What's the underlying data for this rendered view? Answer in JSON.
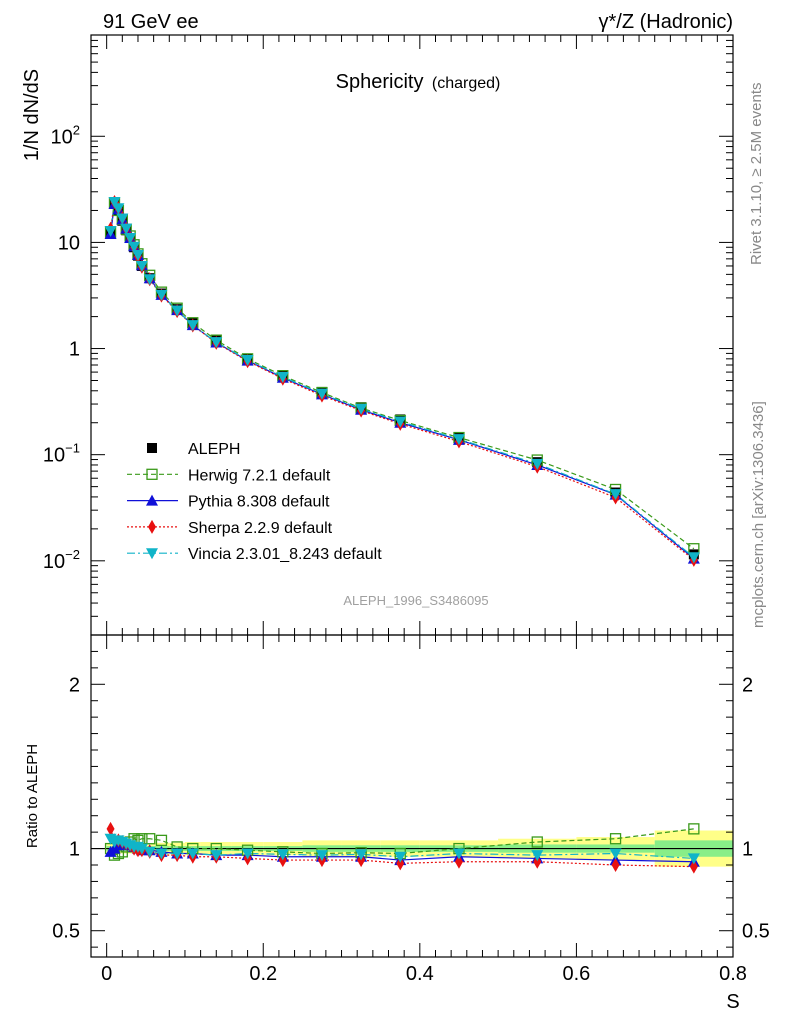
{
  "header": {
    "left": "91 GeV ee",
    "right": "γ*/Z (Hadronic)"
  },
  "side_labels": {
    "rivet": "Rivet 3.1.10, ≥ 2.5M events",
    "mcplots": "mcplots.cern.ch [arXiv:1306.3436]"
  },
  "analysis_id": "ALEPH_1996_S3486095",
  "colors": {
    "herwig": "#3a9a1a",
    "pythia": "#1010d8",
    "sherpa": "#e81010",
    "vincia": "#10b4c8",
    "data": "#000000",
    "band_outer": "#ffff88",
    "band_inner": "#88ee88"
  },
  "chart_data": [
    {
      "type": "line",
      "panel": "main",
      "title": "Sphericity",
      "title_suffix": "(charged)",
      "ylabel": "1/N dN/dS",
      "yscale": "log",
      "ylim": [
        0.002,
        900
      ],
      "xlim": [
        -0.02,
        0.8
      ],
      "yticks": [
        {
          "v": 0.01,
          "base": "10",
          "exp": "−2"
        },
        {
          "v": 0.1,
          "base": "10",
          "exp": "−1"
        },
        {
          "v": 1,
          "base": "1",
          "exp": ""
        },
        {
          "v": 10,
          "base": "10",
          "exp": ""
        },
        {
          "v": 100,
          "base": "10",
          "exp": "2"
        }
      ],
      "x": [
        0.005,
        0.01,
        0.015,
        0.02,
        0.025,
        0.03,
        0.035,
        0.04,
        0.045,
        0.055,
        0.07,
        0.09,
        0.11,
        0.14,
        0.18,
        0.225,
        0.275,
        0.325,
        0.375,
        0.45,
        0.55,
        0.65,
        0.75
      ],
      "series": [
        {
          "name": "ALEPH",
          "key": "data",
          "values": [
            12,
            23,
            20,
            16,
            13,
            11,
            9,
            7.5,
            6,
            4.6,
            3.3,
            2.35,
            1.75,
            1.2,
            0.8,
            0.56,
            0.39,
            0.28,
            0.215,
            0.145,
            0.085,
            0.044,
            0.0115
          ]
        },
        {
          "name": "Herwig 7.2.1 default",
          "key": "herwig",
          "values": [
            12.5,
            23.5,
            20,
            16.5,
            13.3,
            11.5,
            9.5,
            7.8,
            6.3,
            4.9,
            3.4,
            2.4,
            1.75,
            1.2,
            0.8,
            0.555,
            0.385,
            0.275,
            0.21,
            0.145,
            0.089,
            0.047,
            0.013
          ]
        },
        {
          "name": "Pythia 8.308 default",
          "key": "pythia",
          "values": [
            12,
            23,
            20.5,
            16.5,
            13.5,
            11,
            9.2,
            7.6,
            6.1,
            4.6,
            3.2,
            2.3,
            1.66,
            1.14,
            0.77,
            0.53,
            0.37,
            0.265,
            0.2,
            0.138,
            0.08,
            0.042,
            0.0105
          ]
        },
        {
          "name": "Sherpa 2.2.9 default",
          "key": "sherpa",
          "values": [
            13.5,
            24,
            21,
            17,
            13.5,
            11,
            9,
            7.4,
            5.9,
            4.5,
            3.15,
            2.25,
            1.65,
            1.13,
            0.76,
            0.52,
            0.36,
            0.26,
            0.195,
            0.133,
            0.077,
            0.0395,
            0.0102
          ]
        },
        {
          "name": "Vincia 2.3.01_8.243 default",
          "key": "vincia",
          "values": [
            12.8,
            24,
            21,
            16.8,
            13.5,
            11,
            9.1,
            7.6,
            6,
            4.5,
            3.2,
            2.28,
            1.66,
            1.15,
            0.78,
            0.54,
            0.375,
            0.27,
            0.205,
            0.14,
            0.082,
            0.0425,
            0.0108
          ]
        }
      ]
    },
    {
      "type": "line",
      "panel": "ratio",
      "ylabel": "Ratio to ALEPH",
      "xlabel": "S",
      "ylim": [
        0.34,
        2.3
      ],
      "xlim": [
        -0.02,
        0.8
      ],
      "yticks": [
        0.5,
        1,
        2
      ],
      "xticks": [
        0,
        0.2,
        0.4,
        0.6,
        0.8
      ],
      "xtick_labels": [
        "0",
        "0.2",
        "0.4",
        "0.6",
        "0.8"
      ],
      "ytick_labels": [
        "0.5",
        "1",
        "2"
      ],
      "x": [
        0.005,
        0.01,
        0.015,
        0.02,
        0.025,
        0.03,
        0.035,
        0.04,
        0.045,
        0.055,
        0.07,
        0.09,
        0.11,
        0.14,
        0.18,
        0.225,
        0.275,
        0.325,
        0.375,
        0.45,
        0.55,
        0.65,
        0.75
      ],
      "band_edges": [
        0,
        0.01,
        0.02,
        0.03,
        0.04,
        0.05,
        0.06,
        0.08,
        0.1,
        0.12,
        0.16,
        0.2,
        0.25,
        0.3,
        0.35,
        0.4,
        0.5,
        0.6,
        0.7,
        0.8
      ],
      "band_inner": [
        0.015,
        0.015,
        0.015,
        0.015,
        0.015,
        0.015,
        0.015,
        0.015,
        0.015,
        0.015,
        0.015,
        0.015,
        0.02,
        0.02,
        0.02,
        0.02,
        0.025,
        0.025,
        0.05
      ],
      "band_outer": [
        0.03,
        0.03,
        0.03,
        0.03,
        0.03,
        0.03,
        0.035,
        0.035,
        0.04,
        0.04,
        0.04,
        0.04,
        0.05,
        0.05,
        0.05,
        0.05,
        0.06,
        0.07,
        0.11
      ],
      "series": [
        {
          "name": "Herwig 7.2.1 default",
          "key": "herwig",
          "values": [
            1.0,
            0.96,
            0.97,
            0.98,
            1.01,
            1.04,
            1.06,
            1.05,
            1.06,
            1.06,
            1.05,
            1.01,
            1.0,
            1.0,
            0.99,
            0.98,
            0.97,
            0.975,
            0.97,
            1.0,
            1.04,
            1.06,
            1.12
          ]
        },
        {
          "name": "Pythia 8.308 default",
          "key": "pythia",
          "values": [
            0.98,
            1.0,
            1.02,
            1.03,
            1.03,
            1.02,
            1.01,
            1.0,
            0.99,
            0.99,
            0.98,
            0.97,
            0.97,
            0.96,
            0.96,
            0.95,
            0.95,
            0.95,
            0.93,
            0.95,
            0.94,
            0.93,
            0.92
          ]
        },
        {
          "name": "Sherpa 2.2.9 default",
          "key": "sherpa",
          "values": [
            1.12,
            1.05,
            1.05,
            1.04,
            1.03,
            1.02,
            1.0,
            0.99,
            0.99,
            0.98,
            0.96,
            0.96,
            0.95,
            0.95,
            0.94,
            0.93,
            0.93,
            0.93,
            0.91,
            0.92,
            0.92,
            0.9,
            0.89
          ]
        },
        {
          "name": "Vincia 2.3.01_8.243 default",
          "key": "vincia",
          "values": [
            1.06,
            1.04,
            1.05,
            1.04,
            1.03,
            1.02,
            1.01,
            1.01,
            1.0,
            0.98,
            0.97,
            0.97,
            0.97,
            0.96,
            0.97,
            0.965,
            0.96,
            0.965,
            0.95,
            0.97,
            0.96,
            0.97,
            0.94
          ]
        }
      ]
    }
  ]
}
